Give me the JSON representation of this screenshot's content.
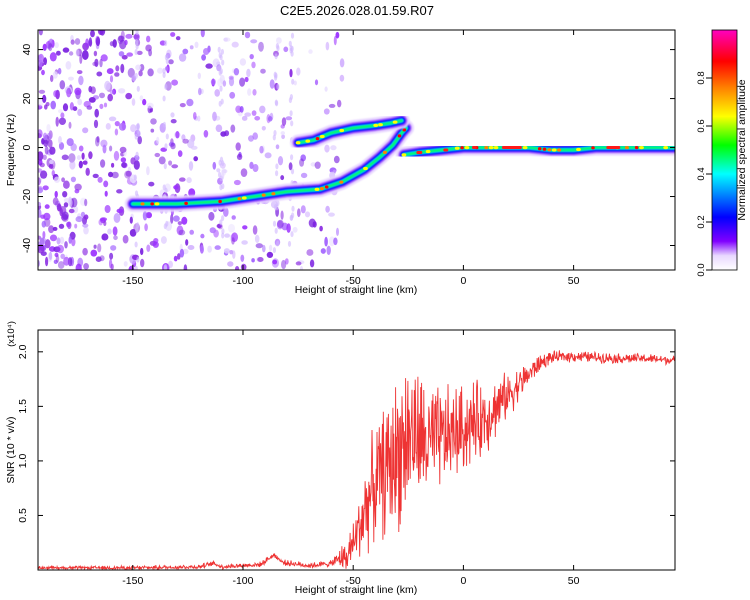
{
  "title": "C2E5.2026.028.01.59.R07",
  "chart_data": [
    {
      "type": "heatmap",
      "xlabel": "Height of straight line (km)",
      "ylabel": "Frequency (Hz)",
      "xlim": [
        -193,
        96
      ],
      "ylim": [
        -50,
        48
      ],
      "xticks": [
        -150,
        -100,
        -50,
        0,
        50
      ],
      "xtick_labels": [
        "-150",
        "-100",
        "-50",
        "0",
        "50"
      ],
      "yticks": [
        -40,
        -20,
        0,
        20,
        40
      ],
      "ytick_labels": [
        "-40",
        "-20",
        "0",
        "20",
        "40"
      ],
      "colorbar": {
        "label": "Normalized spectral amplitude",
        "range": [
          0,
          1
        ],
        "ticks": [
          0.0,
          0.2,
          0.4,
          0.6,
          0.8
        ],
        "tick_labels": [
          "0.0",
          "0.2",
          "0.4",
          "0.6",
          "0.8"
        ],
        "colors": [
          "#ffffff",
          "#8000ff",
          "#0000ff",
          "#00ffff",
          "#00ff00",
          "#ffff00",
          "#ff8000",
          "#ff0000",
          "#ff00c0"
        ]
      },
      "ridges": [
        {
          "name": "lower branch",
          "points": [
            [
              -150,
              -23
            ],
            [
              -130,
              -23
            ],
            [
              -110,
              -22
            ],
            [
              -95,
              -20
            ],
            [
              -80,
              -18
            ],
            [
              -65,
              -17
            ],
            [
              -55,
              -14
            ],
            [
              -45,
              -9
            ],
            [
              -38,
              -4
            ],
            [
              -32,
              1
            ],
            [
              -28,
              6
            ],
            [
              -26,
              8
            ]
          ]
        },
        {
          "name": "upper branch",
          "points": [
            [
              -75,
              2
            ],
            [
              -68,
              3
            ],
            [
              -60,
              6
            ],
            [
              -50,
              8
            ],
            [
              -40,
              9
            ],
            [
              -33,
              10
            ],
            [
              -28,
              11
            ]
          ]
        },
        {
          "name": "main line",
          "points": [
            [
              -27,
              -3
            ],
            [
              -20,
              -2
            ],
            [
              -10,
              -1
            ],
            [
              0,
              0
            ],
            [
              10,
              0
            ],
            [
              20,
              0
            ],
            [
              30,
              0
            ],
            [
              40,
              -1
            ],
            [
              50,
              -1
            ],
            [
              60,
              0
            ],
            [
              70,
              0
            ],
            [
              80,
              0
            ],
            [
              96,
              0
            ]
          ]
        }
      ],
      "noise_region": {
        "x_from": -193,
        "x_to": -55,
        "note": "scattered purple speckle"
      }
    },
    {
      "type": "line",
      "xlabel": "Height of straight line (km)",
      "ylabel": "SNR (10 * v/v)",
      "y_multiplier": "(x10⁴)",
      "xlim": [
        -193,
        96
      ],
      "ylim": [
        0,
        2.2
      ],
      "xticks": [
        -150,
        -100,
        -50,
        0,
        50
      ],
      "xtick_labels": [
        "-150",
        "-100",
        "-50",
        "0",
        "50"
      ],
      "yticks": [
        0.5,
        1.0,
        1.5,
        2.0
      ],
      "ytick_labels": [
        "0.5",
        "1.0",
        "1.5",
        "2.0"
      ],
      "series": [
        {
          "name": "SNR",
          "color": "#ee3333",
          "points": [
            [
              -193,
              0.02
            ],
            [
              -150,
              0.02
            ],
            [
              -120,
              0.03
            ],
            [
              -113,
              0.06
            ],
            [
              -110,
              0.03
            ],
            [
              -92,
              0.05
            ],
            [
              -86,
              0.14
            ],
            [
              -82,
              0.07
            ],
            [
              -70,
              0.04
            ],
            [
              -60,
              0.06
            ],
            [
              -52,
              0.15
            ],
            [
              -48,
              0.35
            ],
            [
              -44,
              0.6
            ],
            [
              -40,
              0.8
            ],
            [
              -36,
              0.9
            ],
            [
              -32,
              1.0
            ],
            [
              -28,
              1.15
            ],
            [
              -24,
              1.25
            ],
            [
              -20,
              1.2
            ],
            [
              -15,
              1.15
            ],
            [
              -10,
              1.2
            ],
            [
              -5,
              1.25
            ],
            [
              0,
              1.3
            ],
            [
              5,
              1.35
            ],
            [
              10,
              1.4
            ],
            [
              15,
              1.5
            ],
            [
              20,
              1.6
            ],
            [
              25,
              1.7
            ],
            [
              30,
              1.8
            ],
            [
              35,
              1.9
            ],
            [
              40,
              1.95
            ],
            [
              50,
              1.96
            ],
            [
              60,
              1.95
            ],
            [
              70,
              1.94
            ],
            [
              80,
              1.94
            ],
            [
              90,
              1.93
            ],
            [
              96,
              1.92
            ]
          ],
          "spread": [
            [
              -193,
              0.01
            ],
            [
              -60,
              0.02
            ],
            [
              -50,
              0.15
            ],
            [
              -45,
              0.3
            ],
            [
              -35,
              0.45
            ],
            [
              -28,
              0.55
            ],
            [
              -20,
              0.45
            ],
            [
              -10,
              0.35
            ],
            [
              0,
              0.3
            ],
            [
              10,
              0.25
            ],
            [
              20,
              0.15
            ],
            [
              30,
              0.08
            ],
            [
              40,
              0.04
            ],
            [
              96,
              0.03
            ]
          ]
        }
      ]
    }
  ]
}
